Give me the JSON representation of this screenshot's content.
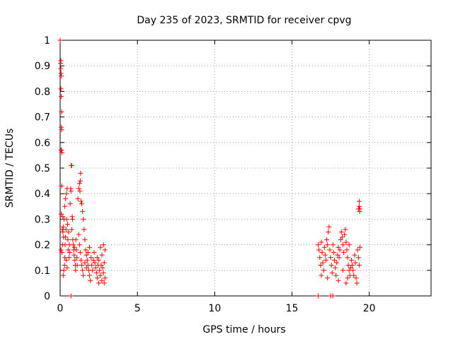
{
  "chart_data": {
    "type": "scatter",
    "title": "Day 235 of 2023, SRMTID for receiver cpvg",
    "xlabel": "GPS time / hours",
    "ylabel": "SRMTID / TECUs",
    "xlim": [
      0,
      24
    ],
    "ylim": [
      0,
      1
    ],
    "x_ticks": [
      0,
      5,
      10,
      15,
      20
    ],
    "x_tick_labels": [
      "0",
      "5",
      "10",
      "15",
      "20"
    ],
    "y_ticks": [
      0,
      0.1,
      0.2,
      0.3,
      0.4,
      0.5,
      0.6,
      0.7,
      0.8,
      0.9,
      1
    ],
    "y_tick_labels": [
      "0",
      "0.1",
      "0.2",
      "0.3",
      "0.4",
      "0.5",
      "0.6",
      "0.7",
      "0.8",
      "0.9",
      "1"
    ],
    "grid": true,
    "marker": "+",
    "marker_color": "#ff0000",
    "series": [
      {
        "name": "SRMTID",
        "points": [
          [
            0.0,
            1.0
          ],
          [
            0.03,
            0.91
          ],
          [
            0.05,
            0.92
          ],
          [
            0.04,
            0.89
          ],
          [
            0.06,
            0.87
          ],
          [
            0.08,
            0.86
          ],
          [
            0.05,
            0.81
          ],
          [
            0.07,
            0.78
          ],
          [
            0.1,
            0.72
          ],
          [
            0.08,
            0.66
          ],
          [
            0.1,
            0.65
          ],
          [
            0.06,
            0.57
          ],
          [
            0.09,
            0.57
          ],
          [
            0.12,
            0.56
          ],
          [
            0.1,
            0.43
          ],
          [
            0.07,
            0.32
          ],
          [
            0.05,
            0.18
          ],
          [
            0.12,
            0.17
          ],
          [
            0.15,
            0.2
          ],
          [
            0.18,
            0.25
          ],
          [
            0.2,
            0.27
          ],
          [
            0.22,
            0.23
          ],
          [
            0.25,
            0.3
          ],
          [
            0.17,
            0.31
          ],
          [
            0.14,
            0.26
          ],
          [
            0.2,
            0.08
          ],
          [
            0.24,
            0.1
          ],
          [
            0.28,
            0.12
          ],
          [
            0.3,
            0.15
          ],
          [
            0.32,
            0.2
          ],
          [
            0.35,
            0.23
          ],
          [
            0.38,
            0.26
          ],
          [
            0.3,
            0.35
          ],
          [
            0.35,
            0.38
          ],
          [
            0.4,
            0.4
          ],
          [
            0.45,
            0.42
          ],
          [
            0.42,
            0.3
          ],
          [
            0.48,
            0.28
          ],
          [
            0.5,
            0.22
          ],
          [
            0.55,
            0.25
          ],
          [
            0.52,
            0.18
          ],
          [
            0.6,
            0.2
          ],
          [
            0.58,
            0.15
          ],
          [
            0.62,
            0.17
          ],
          [
            0.4,
            0.14
          ],
          [
            0.45,
            0.11
          ],
          [
            0.65,
            0.36
          ],
          [
            0.68,
            0.42
          ],
          [
            0.7,
            0.41
          ],
          [
            0.72,
            0.51
          ],
          [
            0.75,
            0.51
          ],
          [
            0.78,
            0.31
          ],
          [
            0.8,
            0.3
          ],
          [
            0.75,
            0.26
          ],
          [
            0.82,
            0.22
          ],
          [
            0.85,
            0.2
          ],
          [
            0.88,
            0.18
          ],
          [
            0.9,
            0.16
          ],
          [
            0.92,
            0.19
          ],
          [
            0.95,
            0.14
          ],
          [
            0.98,
            0.12
          ],
          [
            1.0,
            0.1
          ],
          [
            1.02,
            0.22
          ],
          [
            1.05,
            0.18
          ],
          [
            1.08,
            0.15
          ],
          [
            1.1,
            0.12
          ],
          [
            0.7,
            0.0
          ],
          [
            1.15,
            0.38
          ],
          [
            1.2,
            0.42
          ],
          [
            1.25,
            0.44
          ],
          [
            1.3,
            0.45
          ],
          [
            1.32,
            0.48
          ],
          [
            1.28,
            0.41
          ],
          [
            1.35,
            0.37
          ],
          [
            1.4,
            0.36
          ],
          [
            1.45,
            0.33
          ],
          [
            1.5,
            0.3
          ],
          [
            1.2,
            0.24
          ],
          [
            1.25,
            0.2
          ],
          [
            1.3,
            0.17
          ],
          [
            1.35,
            0.14
          ],
          [
            1.4,
            0.12
          ],
          [
            1.45,
            0.1
          ],
          [
            1.5,
            0.08
          ],
          [
            1.55,
            0.26
          ],
          [
            1.6,
            0.22
          ],
          [
            1.65,
            0.18
          ],
          [
            1.7,
            0.16
          ],
          [
            1.75,
            0.14
          ],
          [
            1.8,
            0.12
          ],
          [
            1.85,
            0.1
          ],
          [
            1.9,
            0.08
          ],
          [
            1.95,
            0.06
          ],
          [
            1.6,
            0.13
          ],
          [
            1.7,
            0.11
          ],
          [
            1.8,
            0.17
          ],
          [
            1.9,
            0.19
          ],
          [
            2.0,
            0.15
          ],
          [
            2.05,
            0.12
          ],
          [
            2.1,
            0.1
          ],
          [
            2.15,
            0.14
          ],
          [
            2.2,
            0.17
          ],
          [
            2.25,
            0.13
          ],
          [
            2.3,
            0.11
          ],
          [
            2.35,
            0.09
          ],
          [
            2.4,
            0.15
          ],
          [
            2.45,
            0.12
          ],
          [
            2.5,
            0.14
          ],
          [
            2.55,
            0.1
          ],
          [
            2.6,
            0.08
          ],
          [
            2.65,
            0.12
          ],
          [
            2.7,
            0.16
          ],
          [
            2.75,
            0.11
          ],
          [
            2.8,
            0.09
          ],
          [
            2.85,
            0.13
          ],
          [
            2.9,
            0.07
          ],
          [
            2.9,
            0.18
          ],
          [
            2.85,
            0.05
          ],
          [
            2.8,
            0.2
          ],
          [
            2.7,
            0.06
          ],
          [
            2.6,
            0.19
          ],
          [
            2.5,
            0.05
          ],
          [
            2.4,
            0.07
          ],
          [
            16.7,
            0.0
          ],
          [
            17.5,
            0.0
          ],
          [
            17.65,
            0.0
          ],
          [
            16.7,
            0.2
          ],
          [
            16.75,
            0.18
          ],
          [
            16.8,
            0.15
          ],
          [
            16.85,
            0.12
          ],
          [
            16.9,
            0.21
          ],
          [
            16.95,
            0.17
          ],
          [
            17.0,
            0.13
          ],
          [
            17.05,
            0.1
          ],
          [
            17.1,
            0.19
          ],
          [
            17.15,
            0.16
          ],
          [
            17.2,
            0.14
          ],
          [
            17.25,
            0.22
          ],
          [
            17.3,
            0.2
          ],
          [
            17.35,
            0.25
          ],
          [
            17.4,
            0.27
          ],
          [
            17.45,
            0.18
          ],
          [
            17.5,
            0.15
          ],
          [
            17.55,
            0.12
          ],
          [
            17.6,
            0.09
          ],
          [
            17.65,
            0.2
          ],
          [
            17.7,
            0.17
          ],
          [
            17.75,
            0.14
          ],
          [
            17.8,
            0.11
          ],
          [
            17.85,
            0.08
          ],
          [
            17.9,
            0.13
          ],
          [
            17.95,
            0.16
          ],
          [
            18.0,
            0.19
          ],
          [
            18.05,
            0.15
          ],
          [
            18.1,
            0.18
          ],
          [
            18.15,
            0.22
          ],
          [
            18.2,
            0.25
          ],
          [
            18.25,
            0.23
          ],
          [
            18.3,
            0.2
          ],
          [
            18.35,
            0.17
          ],
          [
            18.4,
            0.24
          ],
          [
            18.45,
            0.26
          ],
          [
            18.5,
            0.21
          ],
          [
            18.55,
            0.18
          ],
          [
            18.6,
            0.15
          ],
          [
            18.65,
            0.12
          ],
          [
            18.7,
            0.1
          ],
          [
            18.75,
            0.08
          ],
          [
            18.8,
            0.11
          ],
          [
            18.85,
            0.14
          ],
          [
            18.9,
            0.12
          ],
          [
            18.95,
            0.1
          ],
          [
            19.0,
            0.08
          ],
          [
            19.05,
            0.16
          ],
          [
            19.1,
            0.13
          ],
          [
            19.15,
            0.07
          ],
          [
            19.2,
            0.05
          ],
          [
            19.25,
            0.18
          ],
          [
            19.3,
            0.15
          ],
          [
            19.35,
            0.12
          ],
          [
            19.4,
            0.19
          ],
          [
            19.3,
            0.34
          ],
          [
            19.35,
            0.35
          ],
          [
            19.4,
            0.34
          ],
          [
            19.35,
            0.37
          ],
          [
            19.38,
            0.33
          ],
          [
            18.5,
            0.05
          ],
          [
            18.6,
            0.07
          ],
          [
            18.0,
            0.06
          ],
          [
            17.3,
            0.07
          ],
          [
            16.9,
            0.08
          ],
          [
            18.3,
            0.1
          ],
          [
            18.7,
            0.2
          ]
        ]
      }
    ]
  }
}
